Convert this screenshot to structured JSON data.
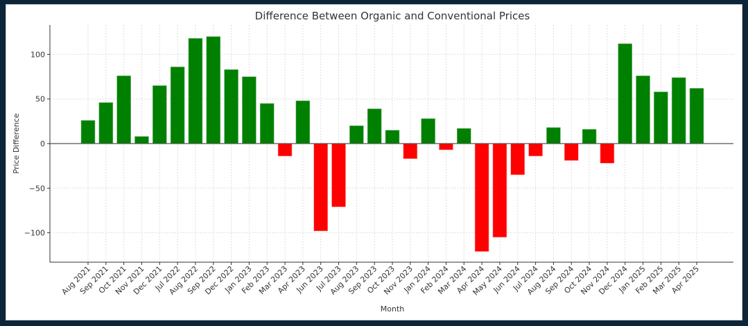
{
  "chart_data": {
    "type": "bar",
    "title": "Difference Between Organic and Conventional Prices",
    "xlabel": "Month",
    "ylabel": "Price Difference",
    "ylim": [
      -133,
      133
    ],
    "yticks": [
      -100,
      -50,
      0,
      50,
      100
    ],
    "ytick_labels": [
      "−100",
      "−50",
      "0",
      "50",
      "100"
    ],
    "grid": true,
    "categories": [
      "Aug 2021",
      "Sep 2021",
      "Oct 2021",
      "Nov 2021",
      "Dec 2021",
      "Jul 2022",
      "Aug 2022",
      "Sep 2022",
      "Dec 2022",
      "Jan 2023",
      "Feb 2023",
      "Mar 2023",
      "Apr 2023",
      "Jun 2023",
      "Jul 2023",
      "Aug 2023",
      "Sep 2023",
      "Oct 2023",
      "Nov 2023",
      "Jan 2024",
      "Feb 2024",
      "Mar 2024",
      "Apr 2024",
      "May 2024",
      "Jun 2024",
      "Jul 2024",
      "Aug 2024",
      "Sep 2024",
      "Oct 2024",
      "Nov 2024",
      "Dec 2024",
      "Jan 2025",
      "Feb 2025",
      "Mar 2025",
      "Apr 2025"
    ],
    "values": [
      26,
      46,
      76,
      8,
      65,
      86,
      118,
      120,
      83,
      75,
      45,
      -14,
      48,
      -98,
      -71,
      20,
      39,
      15,
      -17,
      28,
      -7,
      17,
      -121,
      -105,
      -35,
      -14,
      18,
      -19,
      16,
      -22,
      112,
      76,
      58,
      74,
      62
    ],
    "colors": {
      "positive": "#008000",
      "negative": "#ff0000",
      "frame": "#0d2538"
    }
  }
}
